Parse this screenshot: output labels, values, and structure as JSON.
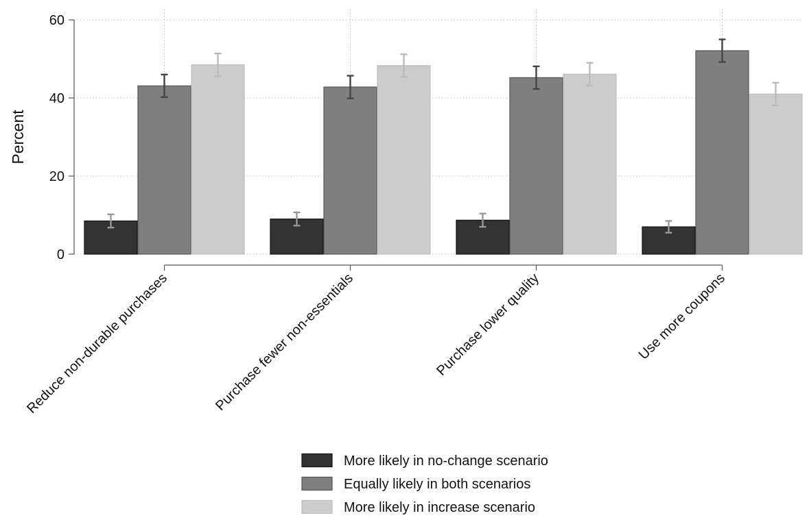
{
  "chart_data": {
    "type": "bar",
    "title": "",
    "xlabel": "",
    "ylabel": "Percent",
    "ylim": [
      0,
      60
    ],
    "yticks": [
      0,
      20,
      40,
      60
    ],
    "grid": true,
    "legend_position": "bottom-center",
    "categories": [
      "Reduce non-durable purchases",
      "Purchase fewer non-essentials",
      "Purchase lower quality",
      "Use more coupons"
    ],
    "series": [
      {
        "name": "More likely in no-change scenario",
        "color": "#333333",
        "errorbar_color": "#999999",
        "values": [
          8.5,
          9.0,
          8.7,
          7.0
        ],
        "ci_low": [
          6.8,
          7.3,
          7.0,
          5.5
        ],
        "ci_high": [
          10.2,
          10.7,
          10.4,
          8.5
        ]
      },
      {
        "name": "Equally likely in both scenarios",
        "color": "#7f7f7f",
        "errorbar_color": "#444444",
        "values": [
          43.1,
          42.8,
          45.2,
          52.1
        ],
        "ci_low": [
          40.2,
          39.9,
          42.3,
          49.2
        ],
        "ci_high": [
          46.0,
          45.7,
          48.1,
          55.0
        ]
      },
      {
        "name": "More likely in increase scenario",
        "color": "#cccccc",
        "errorbar_color": "#bbbbbb",
        "values": [
          48.5,
          48.3,
          46.1,
          41.0
        ],
        "ci_low": [
          45.6,
          45.4,
          43.2,
          38.1
        ],
        "ci_high": [
          51.4,
          51.2,
          49.0,
          43.9
        ]
      }
    ]
  }
}
